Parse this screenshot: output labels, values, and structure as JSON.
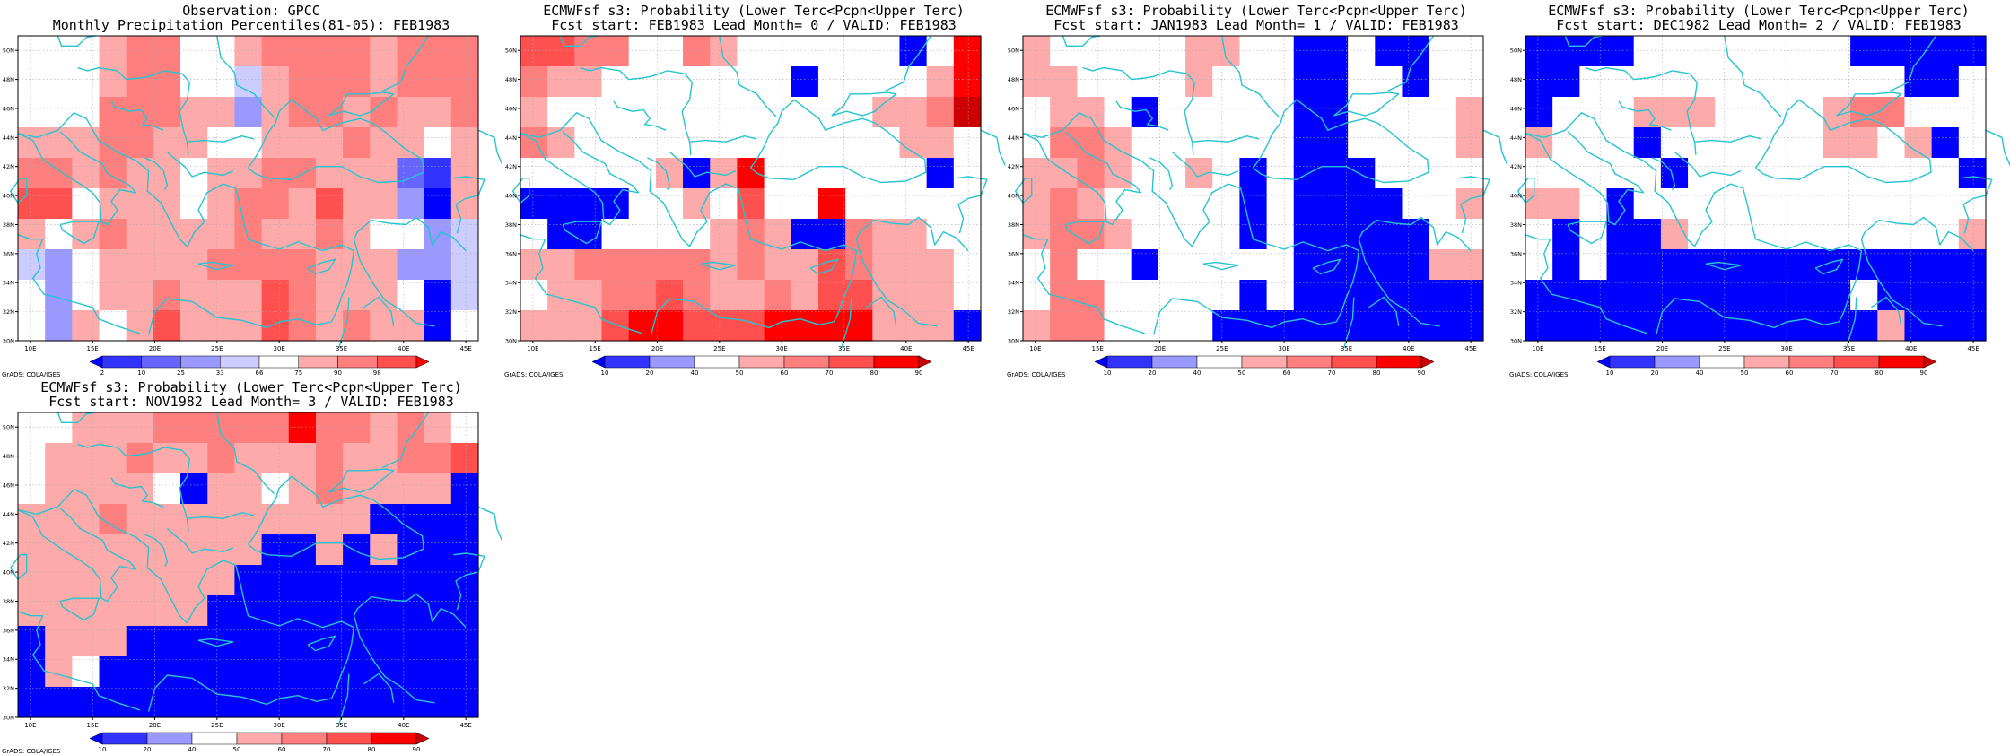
{
  "palettes": {
    "obs": [
      "#0000ff",
      "#3333ff",
      "#6666ff",
      "#9999ff",
      "#ccccff",
      "#ffffff",
      "#ffaaaa",
      "#ff7f7f",
      "#ff5050",
      "#ff0000"
    ],
    "prob": [
      "#0000ff",
      "#3333ff",
      "#9999ff",
      "#ffffff",
      "#ffaaaa",
      "#ff7f7f",
      "#ff5050",
      "#ff0000",
      "#cc0000"
    ]
  },
  "credit": "GrADS: COLA/IGES",
  "chart_data": [
    {
      "type": "heatmap",
      "title": "Observation: GPCC",
      "subtitle": "Monthly Precipitation Percentiles(81-05): FEB1983",
      "palette": "obs",
      "colorbar_labels": [
        "2",
        "10",
        "25",
        "33",
        "66",
        "75",
        "90",
        "98"
      ],
      "x_ticks": [
        "10E",
        "15E",
        "20E",
        "25E",
        "30E",
        "35E",
        "40E",
        "45E"
      ],
      "y_ticks": [
        "30N",
        "32N",
        "34N",
        "36N",
        "38N",
        "40N",
        "42N",
        "44N",
        "46N",
        "48N",
        "50N"
      ],
      "lon_range": [
        9,
        46
      ],
      "lat_range": [
        30,
        51
      ],
      "grid": [
        [
          5,
          5,
          5,
          6,
          7,
          7,
          5,
          5,
          6,
          7,
          7,
          7,
          7,
          6,
          7,
          7,
          7
        ],
        [
          5,
          5,
          5,
          6,
          7,
          7,
          5,
          5,
          4,
          6,
          7,
          7,
          7,
          6,
          7,
          7,
          7
        ],
        [
          5,
          5,
          5,
          7,
          7,
          7,
          6,
          6,
          3,
          6,
          7,
          7,
          6,
          7,
          6,
          6,
          7
        ],
        [
          6,
          6,
          6,
          7,
          7,
          6,
          6,
          5,
          5,
          6,
          6,
          6,
          7,
          6,
          6,
          5,
          6
        ],
        [
          7,
          7,
          6,
          7,
          6,
          6,
          5,
          6,
          6,
          7,
          7,
          6,
          6,
          6,
          2,
          1,
          6
        ],
        [
          8,
          8,
          5,
          6,
          6,
          6,
          5,
          6,
          7,
          7,
          6,
          8,
          6,
          6,
          3,
          0,
          6
        ],
        [
          6,
          5,
          6,
          7,
          6,
          6,
          6,
          6,
          7,
          6,
          6,
          7,
          6,
          5,
          5,
          3,
          4
        ],
        [
          4,
          3,
          5,
          6,
          6,
          6,
          6,
          7,
          7,
          7,
          7,
          6,
          6,
          6,
          3,
          3,
          4
        ],
        [
          5,
          3,
          5,
          6,
          6,
          7,
          6,
          6,
          6,
          8,
          7,
          6,
          6,
          6,
          5,
          0,
          4
        ],
        [
          5,
          3,
          6,
          5,
          6,
          8,
          6,
          6,
          6,
          8,
          7,
          6,
          7,
          6,
          6,
          0,
          5
        ]
      ]
    },
    {
      "type": "heatmap",
      "title": "ECMWFsf s3: Probability (Lower Terc<Pcpn<Upper Terc)",
      "subtitle": "Fcst start: FEB1983  Lead Month= 0 / VALID: FEB1983",
      "palette": "prob",
      "colorbar_labels": [
        "10",
        "20",
        "40",
        "50",
        "60",
        "70",
        "80",
        "90"
      ],
      "x_ticks": [
        "10E",
        "15E",
        "20E",
        "25E",
        "30E",
        "35E",
        "40E",
        "45E"
      ],
      "y_ticks": [
        "30N",
        "32N",
        "34N",
        "36N",
        "38N",
        "40N",
        "42N",
        "44N",
        "46N",
        "48N",
        "50N"
      ],
      "lon_range": [
        9,
        46
      ],
      "lat_range": [
        30,
        51
      ],
      "grid": [
        [
          6,
          6,
          5,
          5,
          3,
          3,
          5,
          4,
          3,
          3,
          3,
          3,
          3,
          3,
          0,
          3,
          7
        ],
        [
          5,
          4,
          4,
          3,
          3,
          3,
          3,
          3,
          3,
          3,
          0,
          3,
          3,
          3,
          3,
          4,
          7
        ],
        [
          4,
          3,
          3,
          3,
          3,
          3,
          3,
          3,
          3,
          3,
          3,
          3,
          3,
          4,
          4,
          5,
          8
        ],
        [
          5,
          4,
          3,
          3,
          3,
          3,
          3,
          3,
          3,
          3,
          3,
          3,
          3,
          3,
          4,
          4,
          3
        ],
        [
          3,
          3,
          3,
          3,
          3,
          4,
          0,
          4,
          7,
          3,
          3,
          3,
          3,
          3,
          3,
          0,
          3
        ],
        [
          0,
          0,
          0,
          0,
          3,
          3,
          4,
          3,
          6,
          3,
          3,
          7,
          3,
          3,
          3,
          3,
          3
        ],
        [
          3,
          0,
          0,
          3,
          3,
          3,
          3,
          4,
          5,
          4,
          0,
          0,
          5,
          4,
          4,
          3,
          3
        ],
        [
          4,
          4,
          5,
          5,
          5,
          5,
          5,
          4,
          5,
          4,
          4,
          6,
          5,
          4,
          4,
          4,
          3
        ],
        [
          3,
          4,
          4,
          5,
          5,
          6,
          5,
          4,
          4,
          5,
          4,
          6,
          6,
          4,
          4,
          4,
          3
        ],
        [
          4,
          4,
          4,
          6,
          7,
          7,
          6,
          6,
          6,
          7,
          7,
          7,
          7,
          4,
          4,
          4,
          0
        ]
      ]
    },
    {
      "type": "heatmap",
      "title": "ECMWFsf s3: Probability (Lower Terc<Pcpn<Upper Terc)",
      "subtitle": "Fcst start: JAN1983  Lead Month= 1 / VALID: FEB1983",
      "palette": "prob",
      "colorbar_labels": [
        "10",
        "20",
        "40",
        "50",
        "60",
        "70",
        "80",
        "90"
      ],
      "x_ticks": [
        "10E",
        "15E",
        "20E",
        "25E",
        "30E",
        "35E",
        "40E",
        "45E"
      ],
      "y_ticks": [
        "30N",
        "32N",
        "34N",
        "36N",
        "38N",
        "40N",
        "42N",
        "44N",
        "46N",
        "48N",
        "50N"
      ],
      "lon_range": [
        9,
        46
      ],
      "lat_range": [
        30,
        51
      ],
      "grid": [
        [
          4,
          3,
          3,
          3,
          3,
          3,
          4,
          4,
          3,
          3,
          0,
          0,
          3,
          0,
          0,
          3,
          3
        ],
        [
          4,
          4,
          3,
          3,
          3,
          3,
          4,
          3,
          3,
          3,
          0,
          0,
          3,
          3,
          0,
          3,
          3
        ],
        [
          3,
          4,
          4,
          3,
          0,
          3,
          3,
          3,
          3,
          3,
          0,
          0,
          3,
          3,
          3,
          3,
          4
        ],
        [
          3,
          5,
          5,
          4,
          3,
          3,
          3,
          3,
          3,
          3,
          0,
          0,
          3,
          3,
          3,
          3,
          4
        ],
        [
          4,
          4,
          5,
          4,
          3,
          3,
          4,
          3,
          0,
          3,
          0,
          0,
          0,
          3,
          3,
          3,
          3
        ],
        [
          4,
          5,
          4,
          3,
          3,
          3,
          3,
          3,
          0,
          3,
          0,
          0,
          0,
          0,
          3,
          3,
          4
        ],
        [
          4,
          5,
          5,
          4,
          3,
          3,
          3,
          3,
          0,
          3,
          0,
          0,
          0,
          0,
          0,
          3,
          3
        ],
        [
          3,
          5,
          3,
          3,
          0,
          3,
          3,
          3,
          3,
          3,
          0,
          0,
          0,
          0,
          0,
          4,
          4
        ],
        [
          3,
          5,
          5,
          3,
          3,
          3,
          3,
          3,
          0,
          3,
          0,
          0,
          0,
          0,
          0,
          0,
          0
        ],
        [
          4,
          5,
          5,
          3,
          3,
          3,
          3,
          0,
          0,
          0,
          0,
          0,
          0,
          0,
          0,
          0,
          0
        ]
      ]
    },
    {
      "type": "heatmap",
      "title": "ECMWFsf s3: Probability (Lower Terc<Pcpn<Upper Terc)",
      "subtitle": "Fcst start: DEC1982  Lead Month= 2 / VALID: FEB1983",
      "palette": "prob",
      "colorbar_labels": [
        "10",
        "20",
        "40",
        "50",
        "60",
        "70",
        "80",
        "90"
      ],
      "x_ticks": [
        "10E",
        "15E",
        "20E",
        "25E",
        "30E",
        "35E",
        "40E",
        "45E"
      ],
      "y_ticks": [
        "30N",
        "32N",
        "34N",
        "36N",
        "38N",
        "40N",
        "42N",
        "44N",
        "46N",
        "48N",
        "50N"
      ],
      "lon_range": [
        9,
        46
      ],
      "lat_range": [
        30,
        51
      ],
      "grid": [
        [
          0,
          0,
          0,
          0,
          3,
          3,
          3,
          3,
          3,
          3,
          3,
          3,
          0,
          0,
          0,
          0,
          0
        ],
        [
          0,
          0,
          3,
          3,
          3,
          3,
          3,
          3,
          3,
          3,
          3,
          3,
          3,
          3,
          0,
          0,
          3
        ],
        [
          0,
          3,
          3,
          3,
          4,
          4,
          4,
          3,
          3,
          3,
          3,
          4,
          5,
          5,
          3,
          3,
          3
        ],
        [
          4,
          3,
          3,
          3,
          0,
          3,
          3,
          3,
          3,
          3,
          3,
          4,
          4,
          3,
          4,
          0,
          3
        ],
        [
          3,
          3,
          3,
          3,
          3,
          0,
          3,
          3,
          3,
          3,
          3,
          3,
          3,
          3,
          3,
          3,
          0
        ],
        [
          4,
          4,
          3,
          0,
          3,
          3,
          3,
          3,
          3,
          3,
          3,
          3,
          3,
          3,
          3,
          3,
          3
        ],
        [
          3,
          0,
          3,
          0,
          0,
          4,
          3,
          3,
          3,
          3,
          3,
          3,
          3,
          3,
          3,
          3,
          4
        ],
        [
          3,
          0,
          3,
          0,
          0,
          0,
          0,
          0,
          0,
          0,
          0,
          0,
          0,
          0,
          0,
          0,
          0
        ],
        [
          0,
          0,
          0,
          0,
          0,
          0,
          0,
          0,
          0,
          0,
          0,
          0,
          3,
          0,
          0,
          0,
          0
        ],
        [
          0,
          0,
          0,
          0,
          0,
          0,
          0,
          0,
          0,
          0,
          0,
          0,
          0,
          4,
          0,
          0,
          0
        ]
      ]
    },
    {
      "type": "heatmap",
      "title": "ECMWFsf s3: Probability (Lower Terc<Pcpn<Upper Terc)",
      "subtitle": "Fcst start: NOV1982  Lead Month= 3 / VALID: FEB1983",
      "palette": "prob",
      "colorbar_labels": [
        "10",
        "20",
        "40",
        "50",
        "60",
        "70",
        "80",
        "90"
      ],
      "x_ticks": [
        "10E",
        "15E",
        "20E",
        "25E",
        "30E",
        "35E",
        "40E",
        "45E"
      ],
      "y_ticks": [
        "30N",
        "32N",
        "34N",
        "36N",
        "38N",
        "40N",
        "42N",
        "44N",
        "46N",
        "48N",
        "50N"
      ],
      "lon_range": [
        9,
        46
      ],
      "lat_range": [
        30,
        51
      ],
      "grid": [
        [
          3,
          3,
          4,
          4,
          4,
          5,
          5,
          5,
          5,
          5,
          7,
          5,
          5,
          4,
          5,
          4,
          3
        ],
        [
          3,
          4,
          4,
          4,
          5,
          4,
          4,
          5,
          4,
          4,
          4,
          5,
          4,
          4,
          5,
          5,
          6
        ],
        [
          3,
          4,
          4,
          4,
          4,
          3,
          0,
          4,
          4,
          3,
          4,
          5,
          4,
          4,
          4,
          4,
          0
        ],
        [
          4,
          4,
          4,
          5,
          4,
          4,
          4,
          4,
          4,
          4,
          4,
          4,
          4,
          0,
          0,
          0,
          0
        ],
        [
          4,
          4,
          4,
          4,
          4,
          4,
          4,
          4,
          4,
          0,
          0,
          4,
          0,
          4,
          0,
          0,
          0
        ],
        [
          4,
          4,
          4,
          4,
          4,
          4,
          4,
          4,
          0,
          0,
          0,
          0,
          0,
          0,
          0,
          0,
          0
        ],
        [
          4,
          4,
          4,
          4,
          4,
          4,
          4,
          0,
          0,
          0,
          0,
          0,
          0,
          0,
          0,
          0,
          0
        ],
        [
          0,
          4,
          4,
          4,
          0,
          0,
          0,
          0,
          0,
          0,
          0,
          0,
          0,
          0,
          0,
          0,
          0
        ],
        [
          0,
          4,
          3,
          0,
          0,
          0,
          0,
          0,
          0,
          0,
          0,
          0,
          0,
          0,
          0,
          0,
          0
        ],
        [
          0,
          0,
          0,
          0,
          0,
          0,
          0,
          0,
          0,
          0,
          0,
          0,
          0,
          0,
          0,
          0,
          0
        ]
      ]
    }
  ]
}
